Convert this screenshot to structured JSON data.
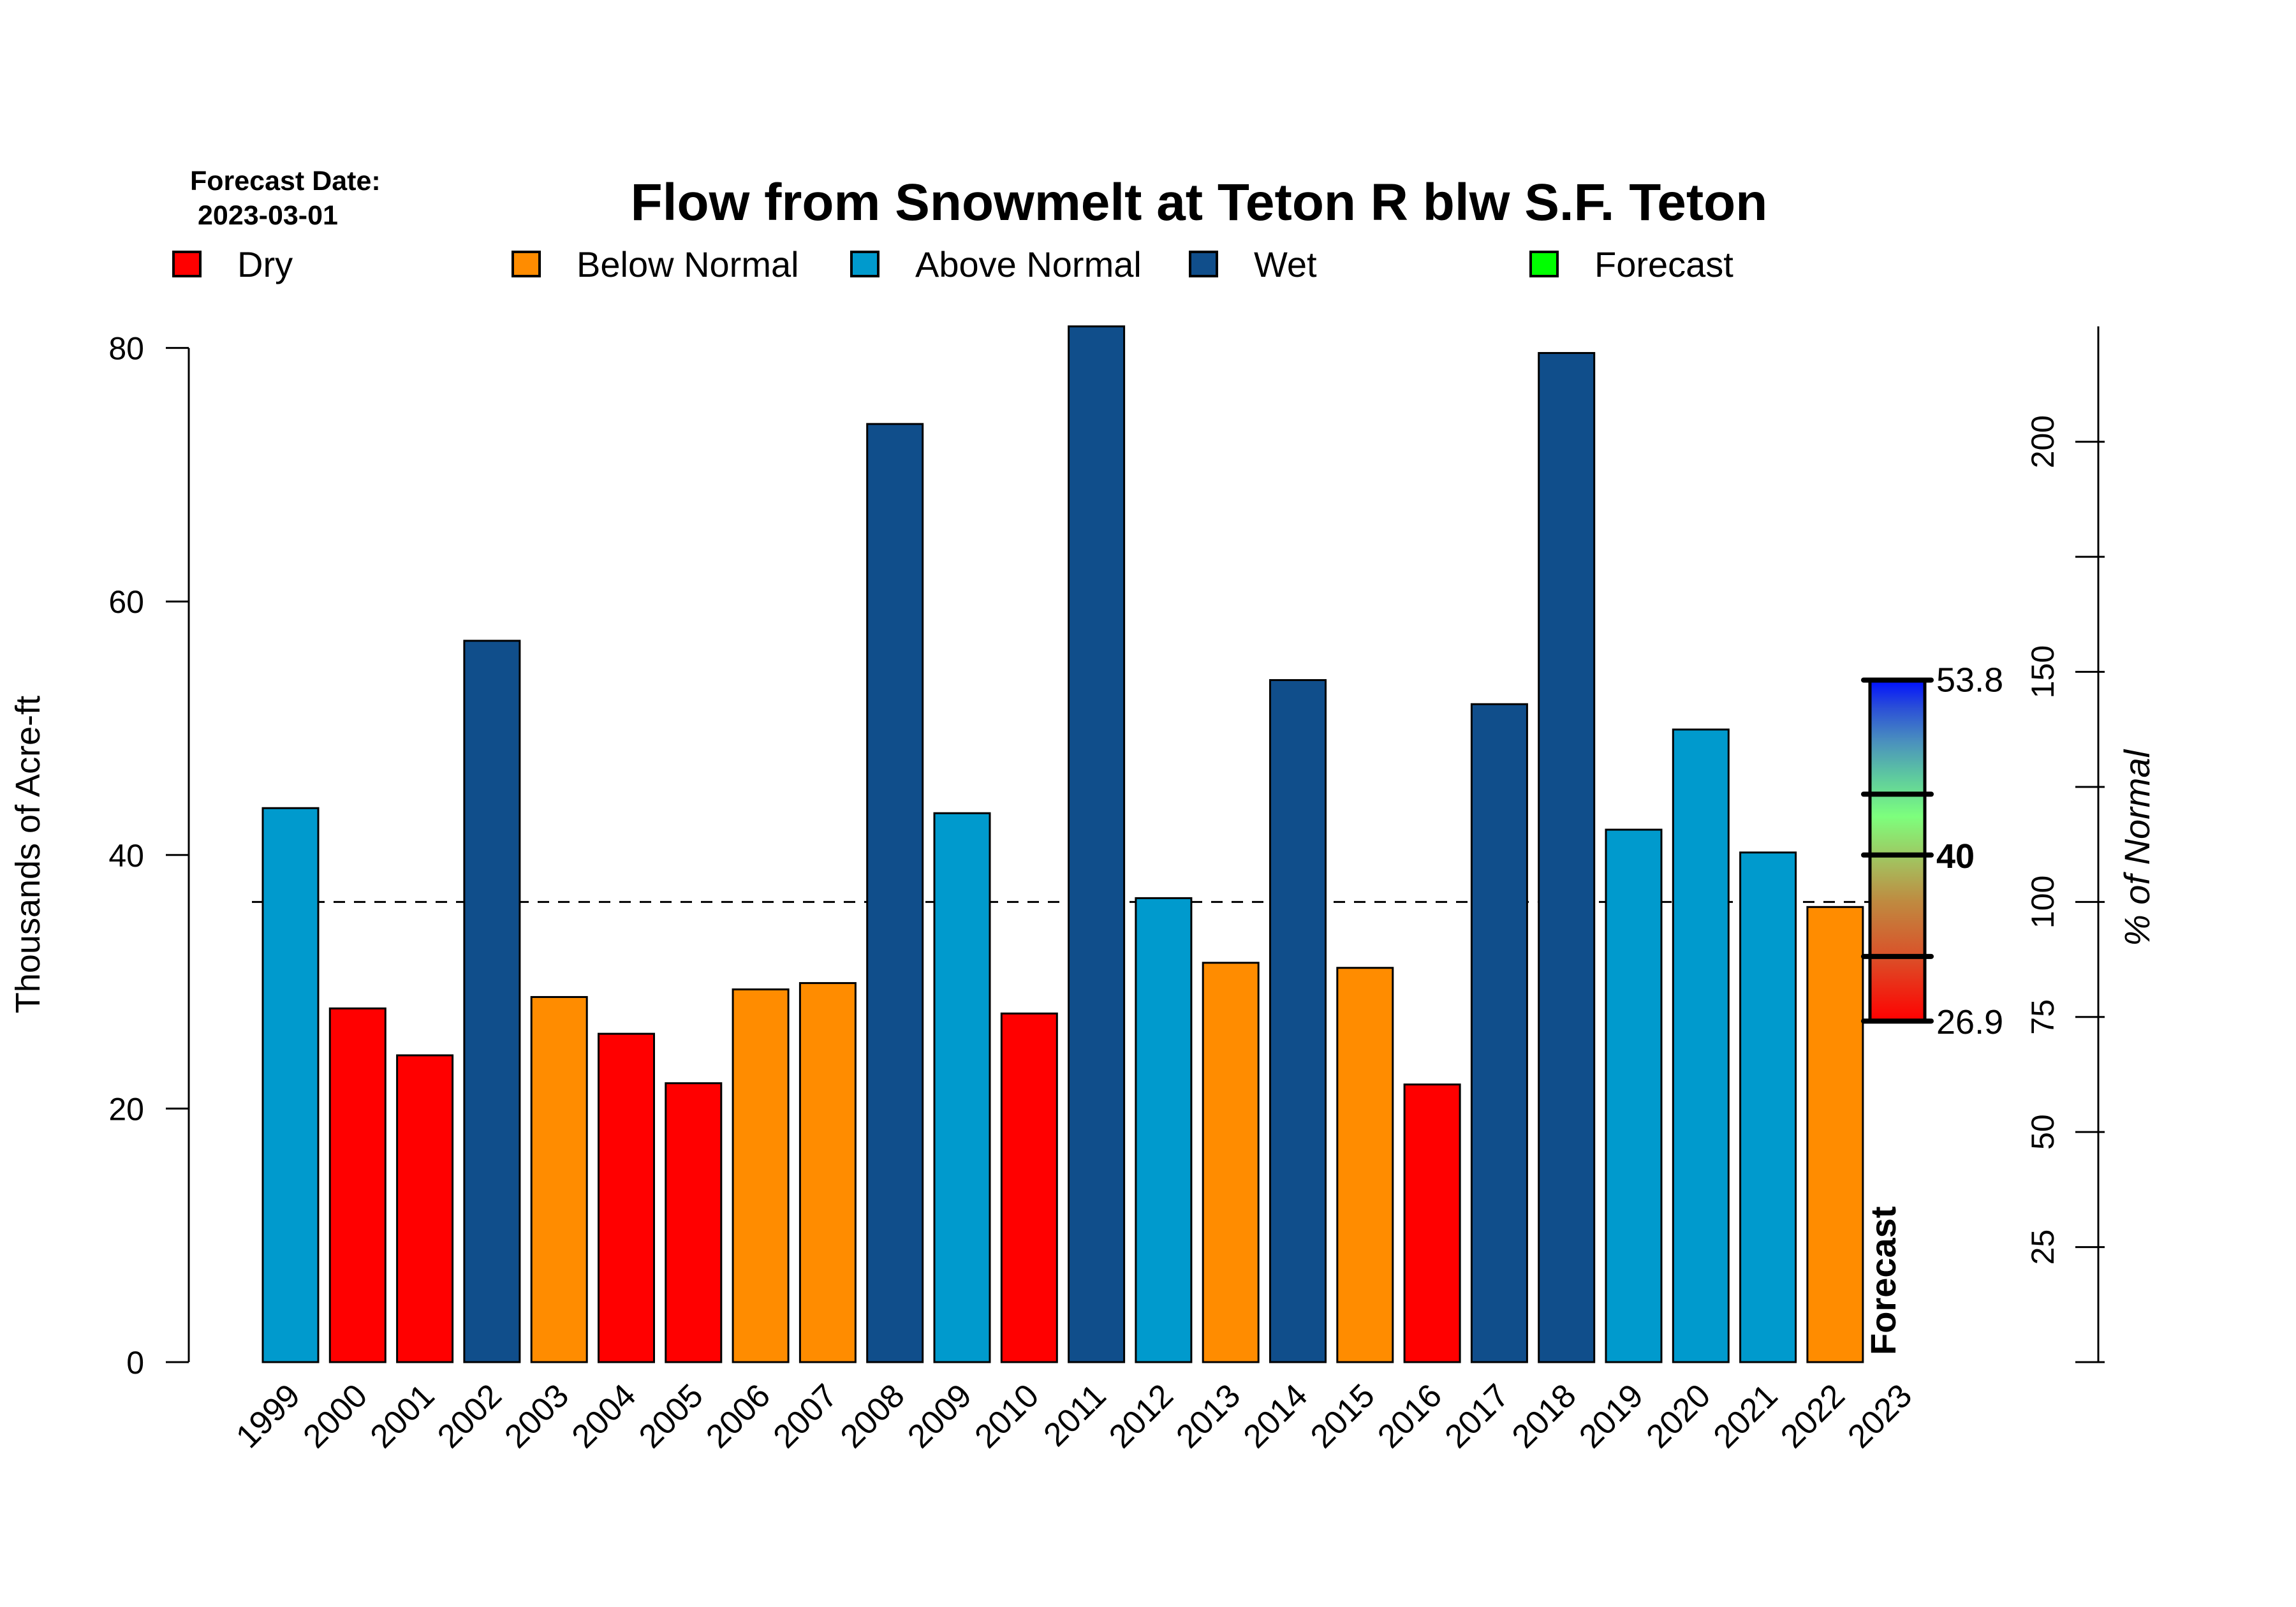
{
  "chart_data": {
    "type": "bar",
    "title": "Flow from Snowmelt at Teton R blw S.F. Teton",
    "forecast_date_label": "Forecast Date:",
    "forecast_date": "2023-03-01",
    "ylabel": "Thousands of Acre-ft",
    "ylabel_right": "% of Normal",
    "xlabel": "",
    "ylim": [
      0,
      81.7
    ],
    "yticks": [
      0,
      20,
      40,
      60,
      80
    ],
    "normal_value": 36.3,
    "right_axis": {
      "ticks": [
        0,
        25,
        50,
        75,
        100,
        125,
        150,
        175,
        200
      ],
      "labeled_ticks": [
        25,
        50,
        75,
        100,
        150,
        200
      ]
    },
    "legend": [
      {
        "label": "Dry",
        "color": "#ff0000"
      },
      {
        "label": "Below Normal",
        "color": "#ff8c00"
      },
      {
        "label": "Above Normal",
        "color": "#009acd"
      },
      {
        "label": "Wet",
        "color": "#104e8b"
      },
      {
        "label": "Forecast",
        "color": "#00ff00"
      }
    ],
    "categories": [
      "1999",
      "2000",
      "2001",
      "2002",
      "2003",
      "2004",
      "2005",
      "2006",
      "2007",
      "2008",
      "2009",
      "2010",
      "2011",
      "2012",
      "2013",
      "2014",
      "2015",
      "2016",
      "2017",
      "2018",
      "2019",
      "2020",
      "2021",
      "2022",
      "2023"
    ],
    "values": [
      43.7,
      27.9,
      24.2,
      56.9,
      28.8,
      25.9,
      22.0,
      29.4,
      29.9,
      74.0,
      43.3,
      27.5,
      81.7,
      36.6,
      31.5,
      53.8,
      31.1,
      21.9,
      51.9,
      79.6,
      42.0,
      49.9,
      40.2,
      35.9,
      null
    ],
    "classes": [
      "Above Normal",
      "Dry",
      "Dry",
      "Wet",
      "Below Normal",
      "Dry",
      "Dry",
      "Below Normal",
      "Below Normal",
      "Wet",
      "Above Normal",
      "Dry",
      "Wet",
      "Above Normal",
      "Below Normal",
      "Wet",
      "Below Normal",
      "Dry",
      "Wet",
      "Wet",
      "Above Normal",
      "Above Normal",
      "Above Normal",
      "Below Normal",
      "Forecast"
    ],
    "forecast": {
      "label": "Forecast",
      "low": 26.9,
      "high": 53.8,
      "median": 40,
      "low_label": "26.9",
      "high_label": "53.8",
      "median_label": "40",
      "inner_ticks": [
        32.0,
        40,
        44.8
      ]
    }
  }
}
